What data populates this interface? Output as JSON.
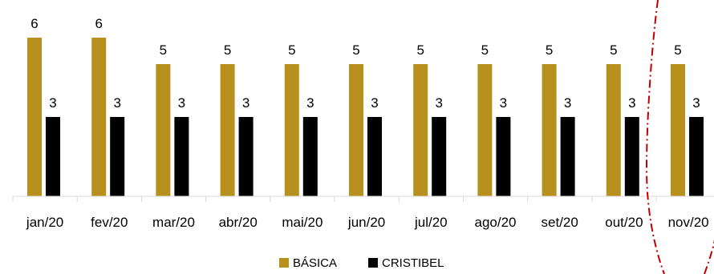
{
  "chart_data": {
    "type": "bar",
    "categories": [
      "jan/20",
      "fev/20",
      "mar/20",
      "abr/20",
      "mai/20",
      "jun/20",
      "jul/20",
      "ago/20",
      "set/20",
      "out/20",
      "nov/20"
    ],
    "series": [
      {
        "name": "BÁSICA",
        "color": "#B8901E",
        "values": [
          6,
          6,
          5,
          5,
          5,
          5,
          5,
          5,
          5,
          5,
          5
        ]
      },
      {
        "name": "CRISTIBEL",
        "color": "#000000",
        "values": [
          3,
          3,
          3,
          3,
          3,
          3,
          3,
          3,
          3,
          3,
          3
        ]
      }
    ],
    "ylim": [
      0,
      6
    ],
    "grid": false,
    "data_labels": true,
    "legend_position": "bottom",
    "annotation": {
      "type": "dash-dot-ellipse",
      "color": "#C00000",
      "highlights": "nov/20"
    }
  }
}
